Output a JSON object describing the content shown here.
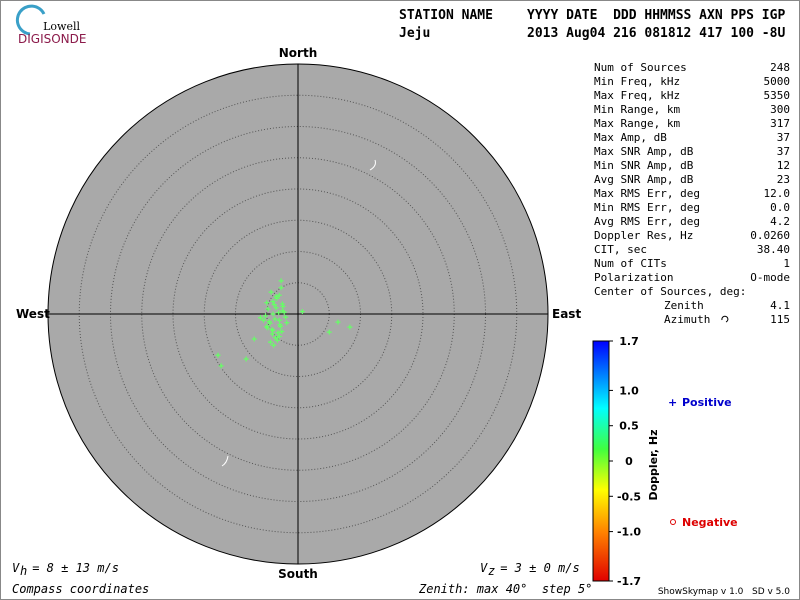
{
  "logo": {
    "top": "Lowell",
    "bottom": "DIGISONDE"
  },
  "header": {
    "row1": [
      "STATION NAME",
      "YYYY DATE  DDD HHMMSS AXN PPS IGP"
    ],
    "row2": [
      "Jeju",
      "2013 Aug04 216 081812 417 100 -8U"
    ]
  },
  "compass": {
    "north": "North",
    "south": "South",
    "west": "West",
    "east": "East"
  },
  "stats": [
    [
      "Num of Sources",
      "248"
    ],
    [
      "Min Freq, kHz",
      "5000"
    ],
    [
      "Max Freq, kHz",
      "5350"
    ],
    [
      "Min Range, km",
      "300"
    ],
    [
      "Max Range, km",
      "317"
    ],
    [
      "Max Amp, dB",
      "37"
    ],
    [
      "Max SNR Amp, dB",
      "37"
    ],
    [
      "Min SNR Amp, dB",
      "12"
    ],
    [
      "Avg SNR Amp, dB",
      "23"
    ],
    [
      "Max RMS Err, deg",
      "12.0"
    ],
    [
      "Min RMS Err, deg",
      "0.0"
    ],
    [
      "Avg RMS Err, deg",
      "4.2"
    ],
    [
      "Doppler Res, Hz",
      "0.0260"
    ],
    [
      "CIT, sec",
      "38.40"
    ],
    [
      "Num of CITs",
      "1"
    ],
    [
      "Polarization",
      "O-mode"
    ]
  ],
  "center": {
    "title": "Center of Sources, deg:",
    "rows": [
      [
        "Zenith",
        "4.1"
      ],
      [
        "Azimuth",
        "115"
      ]
    ]
  },
  "colorbar": {
    "label": "Doppler, Hz",
    "lim": [
      -1.7,
      1.7
    ],
    "ticks": [
      1.7,
      {
        "value": 1,
        "label": "1.0"
      },
      0.5,
      0,
      -0.5,
      {
        "value": -1,
        "label": "-1.0"
      },
      -1.7
    ]
  },
  "legend": {
    "positive": "Positive",
    "negative": "Negative",
    "positive_color": "#0000cc",
    "negative_color": "#dd0000"
  },
  "skymap": {
    "type": "scatter",
    "color": "#66ff66",
    "east": [
      -4,
      -3.5,
      -3,
      -2.5,
      -5,
      -4.5,
      -4,
      -3,
      -2,
      -5.5,
      -4.2,
      -3.8,
      -3.2,
      -2.8,
      -4.8,
      -5.2,
      -3.6,
      -2.4,
      -4.4,
      -3.4,
      -4.6,
      -2.9,
      -3.1,
      -5,
      -4.1,
      -3.7,
      -2.6,
      -4.9,
      -3.3,
      -2.2,
      -4.3,
      -3.9,
      -6,
      -1.8,
      -2.7,
      -12.8,
      -12.3,
      -8.3,
      -7,
      6.4,
      8.3,
      5,
      -2.7,
      0.7,
      -3.5,
      -3,
      -4,
      -2.5
    ],
    "north": [
      0,
      1,
      -1,
      0.5,
      -2,
      -1.5,
      2,
      3,
      -0.5,
      -1,
      -2.5,
      1.5,
      -3,
      -2,
      0.8,
      -0.3,
      -3.8,
      1.2,
      -4.5,
      2.5,
      -1.2,
      -1.7,
      0.2,
      1.8,
      -3.2,
      -0.8,
      -2.8,
      -2.2,
      -4.2,
      0.3,
      3.5,
      -5,
      -0.6,
      -1.4,
      4.2,
      -6.6,
      -8.3,
      -7.2,
      -4,
      -1.3,
      -2.1,
      -2.9,
      5.3,
      0.4,
      2.8,
      -3.6,
      -2.6,
      1.6
    ]
  },
  "footer": {
    "vh": {
      "symbol": "V",
      "sub": "h",
      "text": " = 8 ± 13 m/s"
    },
    "vz": {
      "symbol": "V",
      "sub": "z",
      "text": " = 3 ± 0 m/s"
    },
    "coords": "Compass coordinates",
    "zenith": "Zenith: max 40°  step 5°",
    "version": "ShowSkymap v 1.0   SD v 5.0"
  }
}
